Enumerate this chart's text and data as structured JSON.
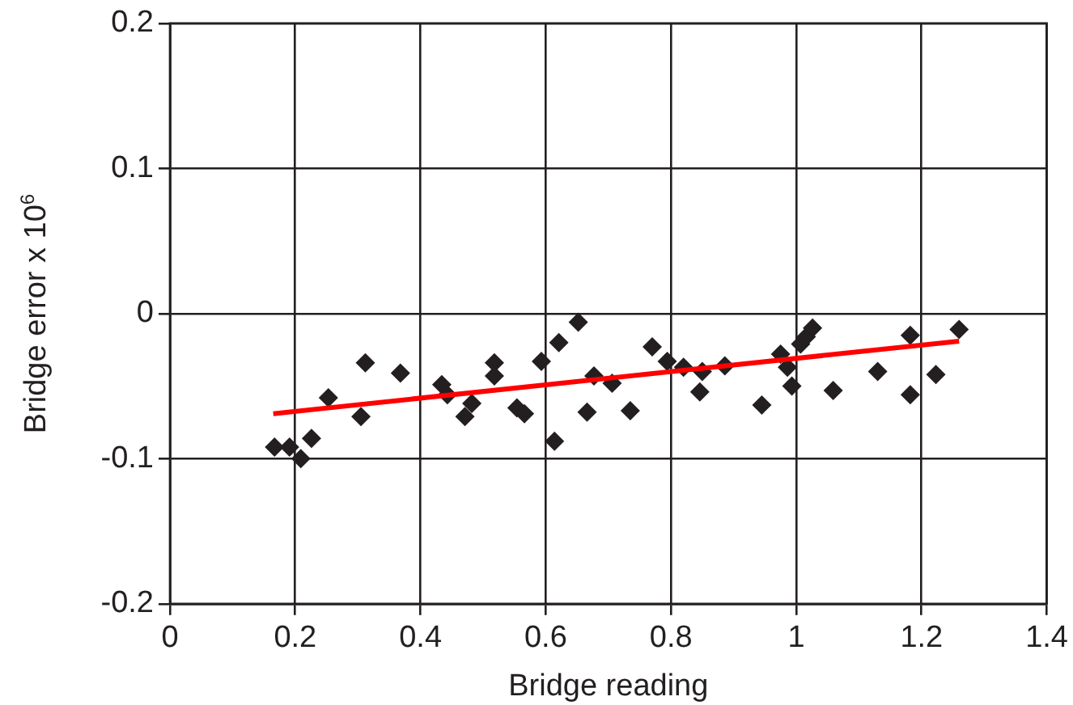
{
  "chart_data": {
    "type": "scatter",
    "xlabel": "Bridge reading",
    "ylabel": "Bridge error x 10$^{6}$",
    "xlim": [
      0,
      1.4
    ],
    "xticks": [
      0,
      0.2,
      0.4,
      0.6,
      0.8,
      1,
      1.2,
      1.4
    ],
    "ylim": [
      -0.2,
      0.2
    ],
    "yticks": [
      -0.2,
      -0.1,
      0,
      0.1,
      0.2
    ],
    "grid": true,
    "legend": false,
    "marker": "diamond",
    "series": [
      {
        "color": "#231f20",
        "x": [
          0.167,
          0.191,
          0.209,
          0.226,
          0.253,
          0.305,
          0.312,
          0.368,
          0.434,
          0.443,
          0.482,
          0.471,
          0.518,
          0.518,
          0.554,
          0.566,
          0.593,
          0.614,
          0.621,
          0.652,
          0.666,
          0.677,
          0.706,
          0.735,
          0.77,
          0.794,
          0.82,
          0.846,
          0.85,
          0.886,
          0.945,
          0.975,
          0.986,
          0.993,
          1.007,
          1.016,
          1.026,
          1.059,
          1.13,
          1.182,
          1.182,
          1.223,
          1.26
        ],
        "values": [
          -0.092,
          -0.092,
          -0.1,
          -0.086,
          -0.058,
          -0.071,
          -0.034,
          -0.041,
          -0.049,
          -0.056,
          -0.062,
          -0.071,
          -0.034,
          -0.043,
          -0.065,
          -0.069,
          -0.033,
          -0.088,
          -0.02,
          -0.006,
          -0.068,
          -0.043,
          -0.048,
          -0.067,
          -0.023,
          -0.033,
          -0.037,
          -0.054,
          -0.04,
          -0.036,
          -0.063,
          -0.028,
          -0.037,
          -0.05,
          -0.021,
          -0.016,
          -0.01,
          -0.053,
          -0.04,
          -0.015,
          -0.056,
          -0.042,
          -0.011
        ]
      },
      {
        "type": "line",
        "color": "#ff0000",
        "marker": "none",
        "line_style": "solid",
        "x": [
          0.165,
          1.26
        ],
        "values": [
          -0.069,
          -0.019
        ]
      }
    ]
  }
}
